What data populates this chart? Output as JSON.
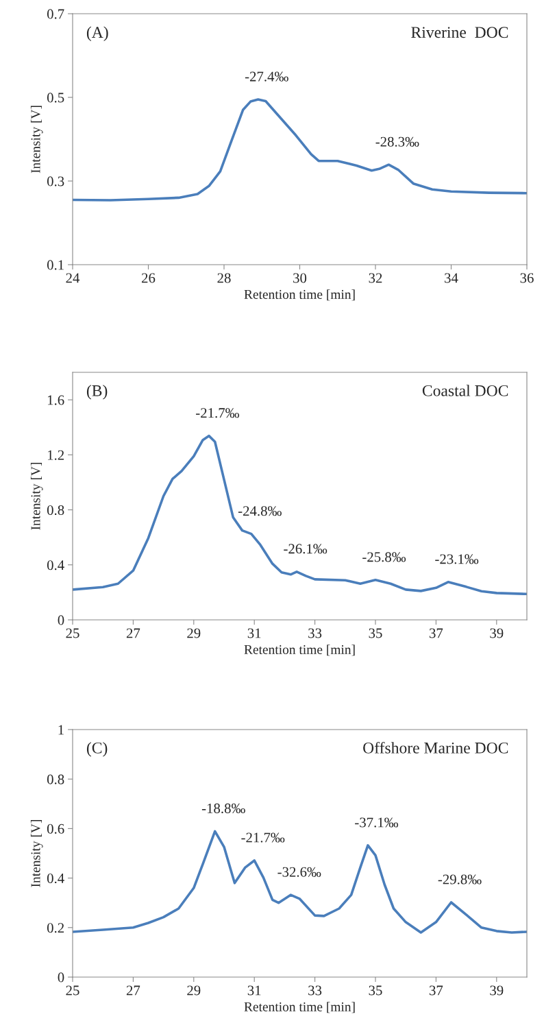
{
  "chart_data": [
    {
      "type": "line",
      "xlabel": "Retention time [min]",
      "ylabel": "Intensity [V]",
      "xlim": [
        24,
        36
      ],
      "ylim": [
        0.1,
        0.7
      ],
      "xticks": [
        24,
        26,
        28,
        30,
        32,
        34,
        36
      ],
      "yticks": [
        0.1,
        0.3,
        0.5,
        0.7
      ],
      "series": [
        {
          "color": "#4a7ebb",
          "x": [
            24,
            25,
            26,
            26.8,
            27.3,
            27.6,
            27.9,
            28.2,
            28.5,
            28.7,
            28.9,
            29.1,
            29.5,
            29.9,
            30.3,
            30.5,
            31,
            31.5,
            31.9,
            32.1,
            32.35,
            32.6,
            33,
            33.5,
            34,
            35,
            36
          ],
          "values": [
            0.255,
            0.254,
            0.257,
            0.26,
            0.269,
            0.288,
            0.323,
            0.397,
            0.47,
            0.49,
            0.495,
            0.491,
            0.45,
            0.409,
            0.364,
            0.348,
            0.348,
            0.337,
            0.325,
            0.329,
            0.339,
            0.327,
            0.294,
            0.28,
            0.275,
            0.272,
            0.271
          ]
        }
      ],
      "annotations": [
        "(A)",
        "Riverine  DOC",
        {
          "text": "-27.4‰",
          "x": 28.9,
          "y": 0.495
        },
        {
          "text": "-28.3‰",
          "x": 32.35,
          "y": 0.339
        }
      ]
    },
    {
      "type": "line",
      "xlabel": "Retention time [min]",
      "ylabel": "Intensity [V]",
      "xlim": [
        25,
        40
      ],
      "ylim": [
        0,
        1.8
      ],
      "xticks": [
        25,
        27,
        29,
        31,
        33,
        35,
        37,
        39
      ],
      "yticks": [
        0,
        0.4,
        0.8,
        1.2,
        1.6
      ],
      "series": [
        {
          "color": "#4a7ebb",
          "x": [
            25,
            26,
            26.5,
            27,
            27.5,
            28,
            28.3,
            28.6,
            29,
            29.3,
            29.5,
            29.7,
            30,
            30.3,
            30.6,
            30.9,
            31.2,
            31.6,
            31.9,
            32.2,
            32.4,
            32.7,
            33,
            34,
            34.5,
            35,
            35.5,
            36,
            36.5,
            37,
            37.4,
            38,
            38.5,
            39,
            40
          ],
          "values": [
            0.22,
            0.238,
            0.263,
            0.358,
            0.595,
            0.9,
            1.025,
            1.083,
            1.19,
            1.308,
            1.338,
            1.295,
            1.02,
            0.745,
            0.65,
            0.625,
            0.545,
            0.408,
            0.345,
            0.33,
            0.35,
            0.32,
            0.295,
            0.288,
            0.263,
            0.29,
            0.263,
            0.22,
            0.21,
            0.233,
            0.275,
            0.24,
            0.208,
            0.195,
            0.188
          ]
        }
      ],
      "annotations": [
        "(B)",
        "Coastal DOC",
        {
          "text": "-21.7‰",
          "x": 29.5,
          "y": 1.338
        },
        {
          "text": "-24.8‰",
          "x": 30.9,
          "y": 0.625
        },
        {
          "text": "-26.1‰",
          "x": 32.4,
          "y": 0.35
        },
        {
          "text": "-25.8‰",
          "x": 35,
          "y": 0.29
        },
        {
          "text": "-23.1‰",
          "x": 37.4,
          "y": 0.275
        }
      ]
    },
    {
      "type": "line",
      "xlabel": "Retention time [min]",
      "ylabel": "Intensity [V]",
      "xlim": [
        25,
        40
      ],
      "ylim": [
        0,
        1
      ],
      "xticks": [
        25,
        27,
        29,
        31,
        33,
        35,
        37,
        39
      ],
      "yticks": [
        0,
        0.2,
        0.4,
        0.6,
        0.8,
        1
      ],
      "series": [
        {
          "color": "#4a7ebb",
          "x": [
            25,
            26,
            27,
            27.5,
            28,
            28.5,
            29,
            29.3,
            29.7,
            30,
            30.35,
            30.7,
            31,
            31.3,
            31.6,
            31.8,
            32.2,
            32.5,
            33,
            33.3,
            33.8,
            34.2,
            34.5,
            34.75,
            35,
            35.3,
            35.6,
            36,
            36.5,
            37,
            37.5,
            38,
            38.5,
            39,
            39.5,
            40
          ],
          "values": [
            0.183,
            0.191,
            0.2,
            0.219,
            0.242,
            0.277,
            0.36,
            0.457,
            0.589,
            0.526,
            0.38,
            0.443,
            0.471,
            0.402,
            0.312,
            0.3,
            0.332,
            0.316,
            0.249,
            0.247,
            0.277,
            0.332,
            0.443,
            0.532,
            0.492,
            0.374,
            0.277,
            0.222,
            0.18,
            0.222,
            0.302,
            0.252,
            0.2,
            0.186,
            0.18,
            0.183
          ]
        }
      ],
      "annotations": [
        "(C)",
        "Offshore Marine DOC",
        {
          "text": "-18.8‰",
          "x": 29.7,
          "y": 0.589
        },
        {
          "text": "-21.7‰",
          "x": 31,
          "y": 0.471
        },
        {
          "text": "-32.6‰",
          "x": 32.2,
          "y": 0.332
        },
        {
          "text": "-37.1‰",
          "x": 34.75,
          "y": 0.532
        },
        {
          "text": "-29.8‰",
          "x": 37.5,
          "y": 0.302
        }
      ]
    }
  ]
}
